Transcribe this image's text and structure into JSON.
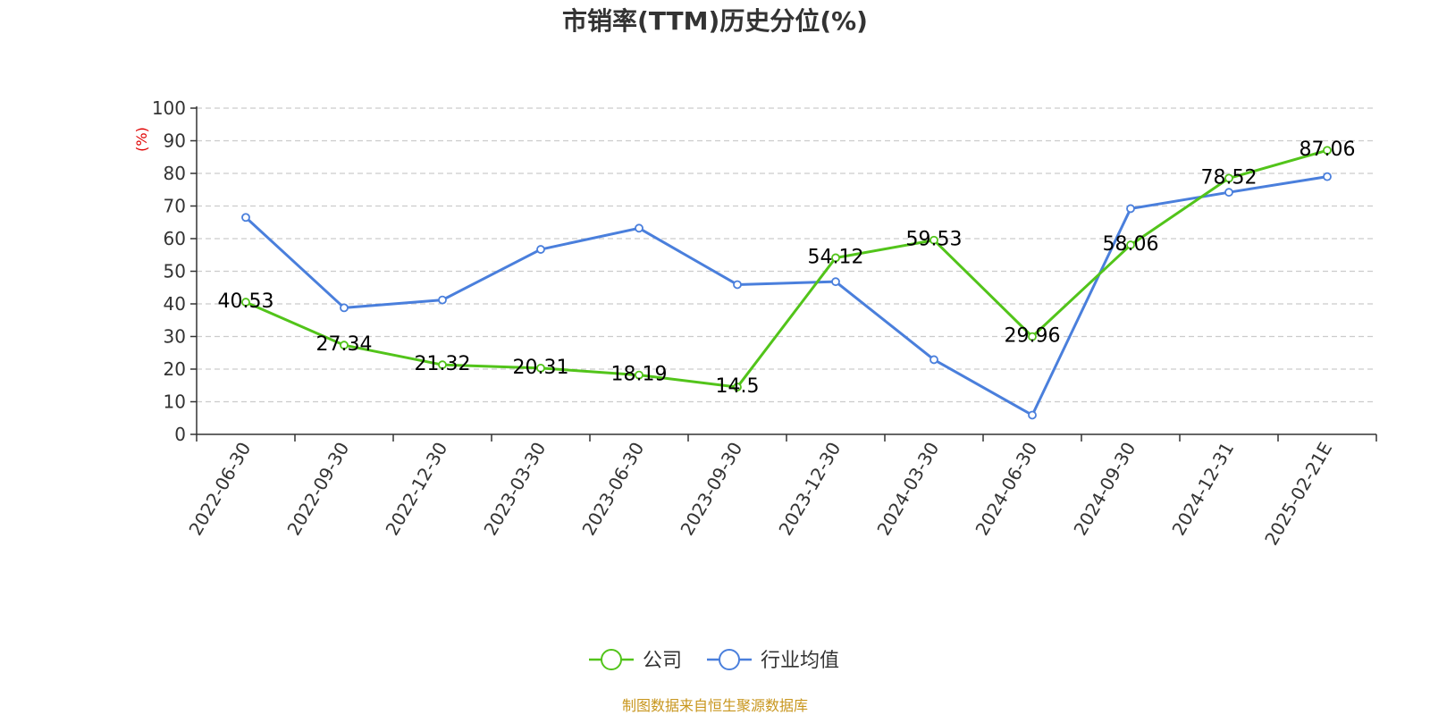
{
  "chart_data": {
    "type": "line",
    "title": "市销率(TTM)历史分位(%)",
    "ylabel": "(%)",
    "xlabel": "",
    "ylim": [
      0,
      100
    ],
    "yticks": [
      0,
      10,
      20,
      30,
      40,
      50,
      60,
      70,
      80,
      90,
      100
    ],
    "grid": true,
    "legend_position": "bottom-center",
    "categories": [
      "2022-06-30",
      "2022-09-30",
      "2022-12-30",
      "2023-03-30",
      "2023-06-30",
      "2023-09-30",
      "2023-12-30",
      "2024-03-30",
      "2024-06-30",
      "2024-09-30",
      "2024-12-31",
      "2025-02-21E"
    ],
    "series": [
      {
        "name": "公司",
        "color": "#52c41a",
        "show_labels": true,
        "values": [
          40.53,
          27.34,
          21.32,
          20.31,
          18.19,
          14.5,
          54.12,
          59.53,
          29.96,
          58.06,
          78.52,
          87.06
        ],
        "labels": [
          "40.53",
          "27.34",
          "21.32",
          "20.31",
          "18.19",
          "14.5",
          "54.12",
          "59.53",
          "29.96",
          "58.06",
          "78.52",
          "87.06"
        ]
      },
      {
        "name": "行业均值",
        "color": "#4a7fdc",
        "show_labels": false,
        "values": [
          66.5,
          38.8,
          41.2,
          56.7,
          63.2,
          45.9,
          46.8,
          22.9,
          5.9,
          69.2,
          74.2,
          79.0
        ]
      }
    ],
    "source": "制图数据来自恒生聚源数据库"
  }
}
